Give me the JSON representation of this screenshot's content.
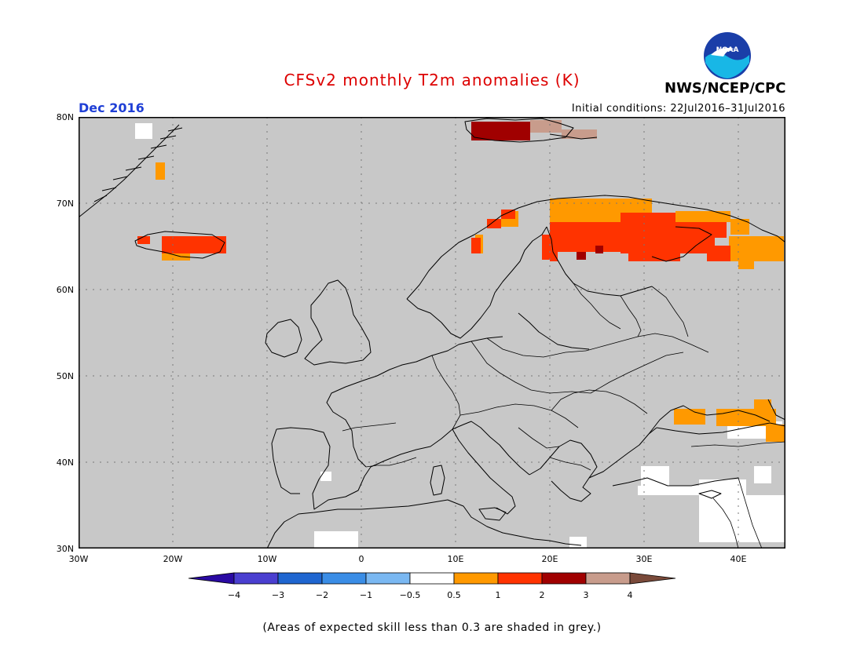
{
  "title": "CFSv2 monthly T2m anomalies (K)",
  "period": "Dec 2016",
  "initial_conditions": "Initial conditions: 22Jul2016–31Jul2016",
  "agency": "NWS/NCEP/CPC",
  "logo_text": "NOAA",
  "note": "(Areas of expected skill less than 0.3 are shaded in grey.)",
  "map": {
    "lat_labels": [
      "80N",
      "70N",
      "60N",
      "50N",
      "40N",
      "30N"
    ],
    "lon_labels": [
      "30W",
      "20W",
      "10W",
      "0",
      "10E",
      "20E",
      "30E",
      "40E"
    ],
    "low_skill_color": "#c8c8c8",
    "grid": "dotted"
  },
  "colorbar": {
    "labels": [
      "−4",
      "−3",
      "−2",
      "−1",
      "−0.5",
      "0.5",
      "1",
      "2",
      "3",
      "4"
    ],
    "colors": [
      "#2a0aa3",
      "#4a3fd0",
      "#1f66d0",
      "#3a8de6",
      "#7ab8f2",
      "#ffffff",
      "#ff9900",
      "#ff3300",
      "#a00000",
      "#c89c8c",
      "#7a4a3a"
    ]
  }
}
